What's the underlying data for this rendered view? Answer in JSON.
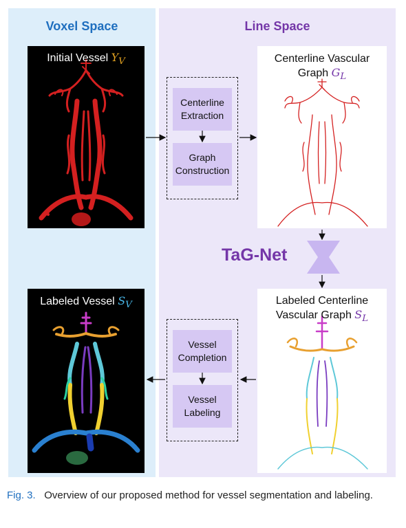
{
  "panels": {
    "voxel_space_label": "Voxel Space",
    "line_space_label": "Line Space"
  },
  "images": {
    "initial_vessel": {
      "label": "Initial Vessel",
      "math_main": "Y",
      "math_sub": "V"
    },
    "labeled_vessel": {
      "label": "Labeled Vessel",
      "math_main": "S",
      "math_sub": "V"
    },
    "centerline_graph": {
      "label_line1": "Centerline Vascular",
      "label_line2": "Graph",
      "math_main": "G",
      "math_sub": "L"
    },
    "labeled_centerline_graph": {
      "label_line1": "Labeled Centerline",
      "label_line2": "Vascular Graph",
      "math_main": "S",
      "math_sub": "L"
    }
  },
  "steps": {
    "centerline_extraction": "Centerline Extraction",
    "graph_construction": "Graph Construction",
    "vessel_completion": "Vessel Completion",
    "vessel_labeling": "Vessel Labeling"
  },
  "network": {
    "name": "TaG-Net"
  },
  "caption": {
    "figure_number": "Fig. 3.",
    "text": "Overview of our proposed method for vessel segmentation and labeling."
  },
  "colors": {
    "voxel_accent": "#1f6fbf",
    "line_accent": "#7436a8",
    "initial_vessel": "#d42020",
    "centerline": "#d42020",
    "label_orange": "#e8a030",
    "label_magenta": "#c83cc8",
    "label_cyan": "#5ec8d8",
    "label_purple": "#7a3cc0",
    "label_yellow": "#f0d030",
    "label_blue": "#2a80d0",
    "label_green": "#2a6a40"
  }
}
